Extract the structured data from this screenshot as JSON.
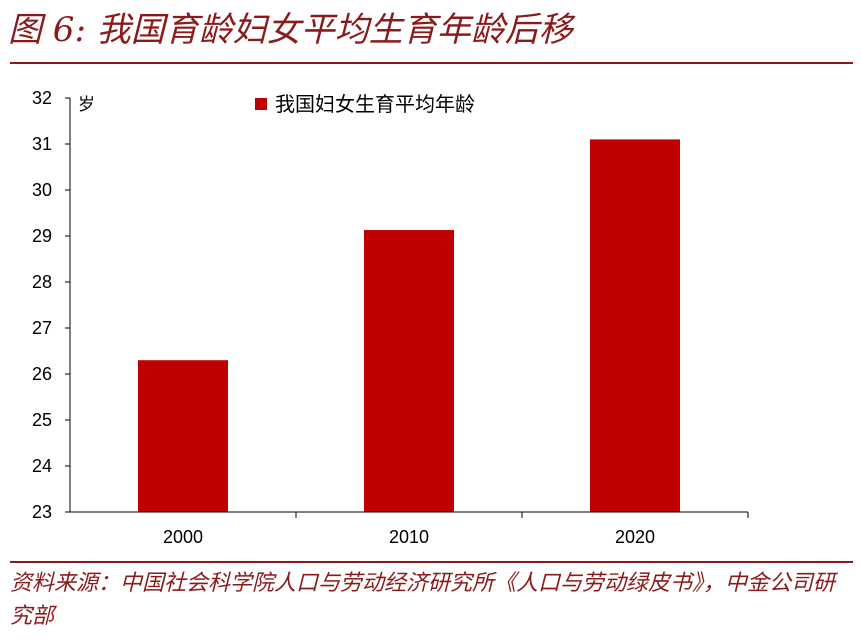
{
  "header": {
    "title": "图 6: 我国育龄妇女平均生育年龄后移"
  },
  "footer": {
    "source": "资料来源：中国社会科学院人口与劳动经济研究所《人口与劳动绿皮书》，中金公司研究部"
  },
  "colors": {
    "accent": "#8b1a1a",
    "bar": "#c00000"
  },
  "chart_data": {
    "type": "bar",
    "title": "",
    "xlabel": "",
    "ylabel": "岁",
    "categories": [
      "2000",
      "2010",
      "2020"
    ],
    "series": [
      {
        "name": "我国妇女生育平均年龄",
        "values": [
          26.3,
          29.13,
          31.1
        ]
      }
    ],
    "ylim": [
      23,
      32
    ],
    "yticks": [
      23,
      24,
      25,
      26,
      27,
      28,
      29,
      30,
      31,
      32
    ],
    "grid": false,
    "legend": "top-center"
  }
}
